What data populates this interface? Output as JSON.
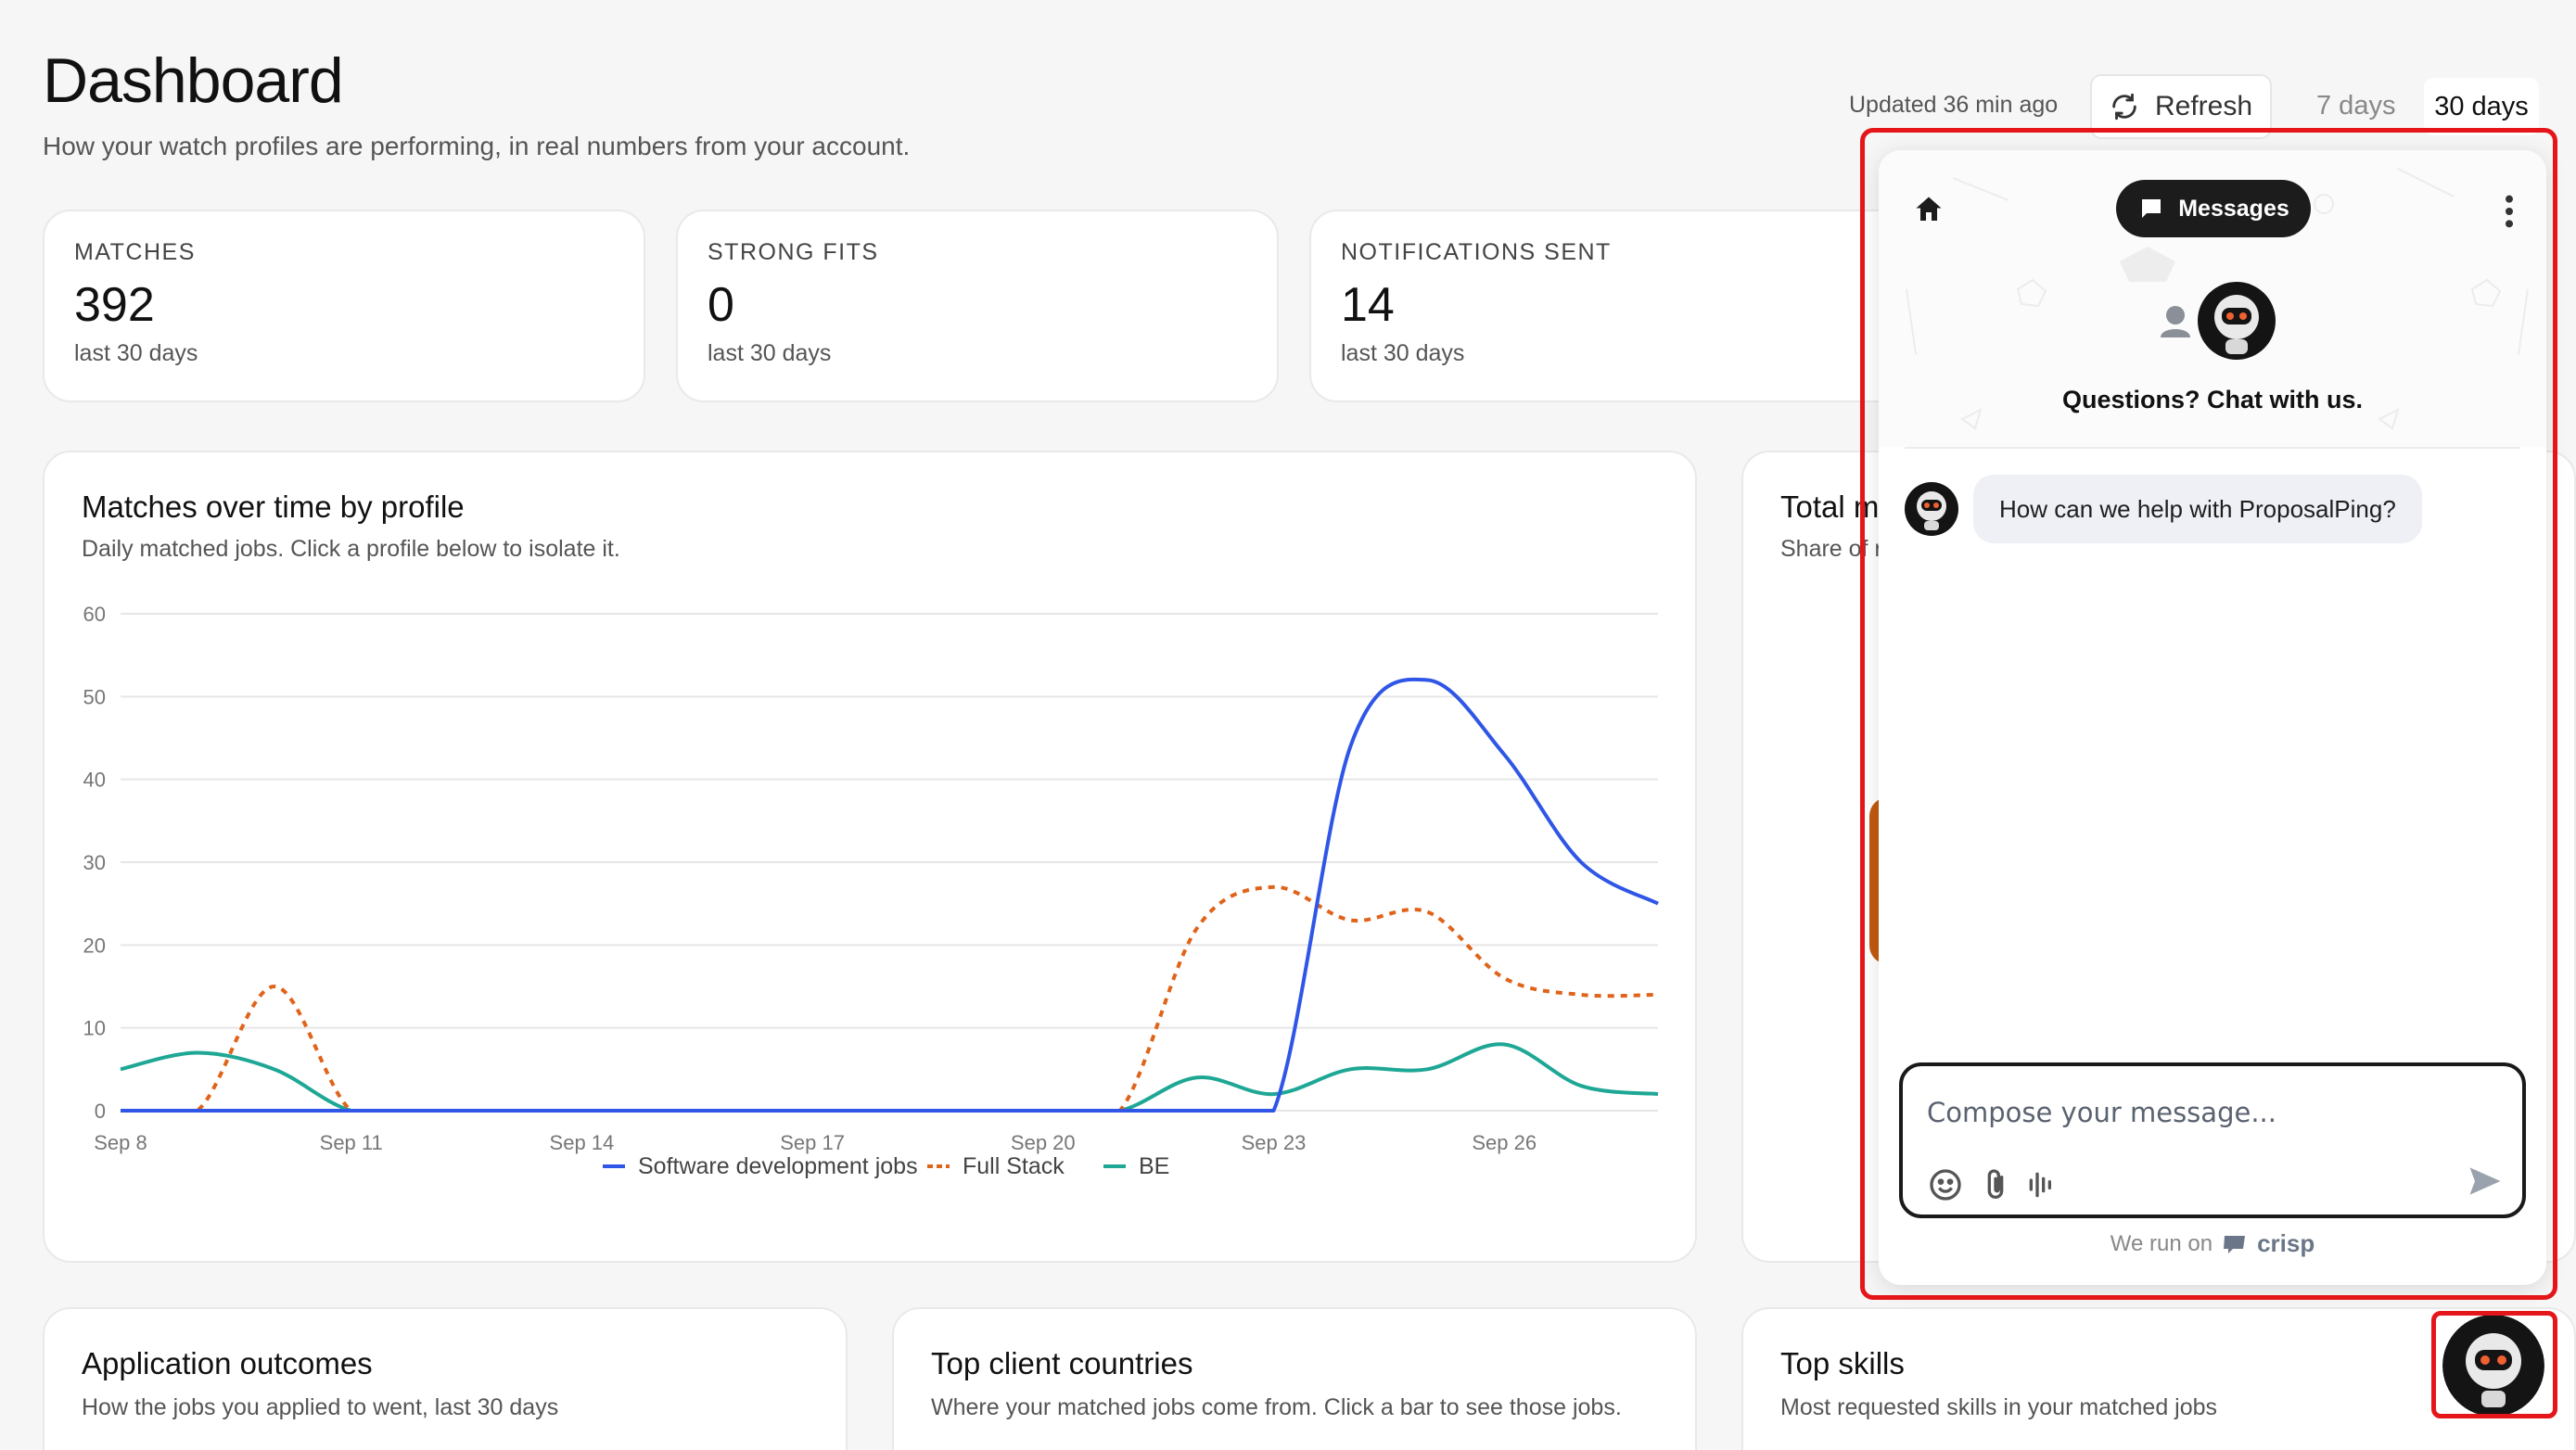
{
  "header": {
    "title": "Dashboard",
    "subtitle": "How your watch profiles are performing, in real numbers from your account.",
    "updated": "Updated 36 min ago",
    "refresh_label": "Refresh",
    "range_7": "7 days",
    "range_30": "30 days"
  },
  "kpis": [
    {
      "label": "MATCHES",
      "value": "392",
      "sub": "last 30 days"
    },
    {
      "label": "STRONG FITS",
      "value": "0",
      "sub": "last 30 days"
    },
    {
      "label": "NOTIFICATIONS SENT",
      "value": "14",
      "sub": "last 30 days"
    }
  ],
  "chart_card": {
    "title": "Matches over time by profile",
    "subtitle": "Daily matched jobs. Click a profile below to isolate it."
  },
  "right_card": {
    "title": "Total m",
    "subtitle": "Share of r"
  },
  "bottom_cards": [
    {
      "title": "Application outcomes",
      "subtitle": "How the jobs you applied to went, last 30 days"
    },
    {
      "title": "Top client countries",
      "subtitle": "Where your matched jobs come from. Click a bar to see those jobs."
    },
    {
      "title": "Top skills",
      "subtitle": "Most requested skills in your matched jobs"
    }
  ],
  "chat": {
    "tab_label": "Messages",
    "question": "Questions? Chat with us.",
    "bot_message": "How can we help with ProposalPing?",
    "composer_placeholder": "Compose your message...",
    "footer_text": "We run on",
    "footer_brand": "crisp"
  },
  "colors": {
    "software": "#2f56e6",
    "fullstack": "#e0631a",
    "be": "#1fa795",
    "highlight": "#e5161a"
  },
  "chart_data": {
    "type": "line",
    "title": "Matches over time by profile",
    "subtitle": "Daily matched jobs. Click a profile below to isolate it.",
    "ylim": [
      0,
      60
    ],
    "yticks": [
      0,
      10,
      20,
      30,
      40,
      50,
      60
    ],
    "xtick_labels": [
      "Sep 8",
      "Sep 11",
      "Sep 14",
      "Sep 17",
      "Sep 20",
      "Sep 23",
      "Sep 26"
    ],
    "x": [
      "Sep 8",
      "Sep 9",
      "Sep 10",
      "Sep 11",
      "Sep 12",
      "Sep 13",
      "Sep 14",
      "Sep 15",
      "Sep 16",
      "Sep 17",
      "Sep 18",
      "Sep 19",
      "Sep 20",
      "Sep 21",
      "Sep 22",
      "Sep 23",
      "Sep 24",
      "Sep 25",
      "Sep 26",
      "Sep 27",
      "Sep 28"
    ],
    "legend_position": "bottom",
    "grid": true,
    "series": [
      {
        "name": "Software development jobs",
        "color": "#2f56e6",
        "dash": false,
        "values": [
          0,
          0,
          0,
          0,
          0,
          0,
          0,
          0,
          0,
          0,
          0,
          0,
          0,
          0,
          0,
          0,
          44,
          52,
          43,
          30,
          25
        ]
      },
      {
        "name": "Full Stack",
        "color": "#e0631a",
        "dash": true,
        "values": [
          0,
          0,
          15,
          0,
          0,
          0,
          0,
          0,
          0,
          0,
          0,
          0,
          0,
          0,
          22,
          27,
          23,
          24,
          16,
          14,
          14
        ]
      },
      {
        "name": "BE",
        "color": "#1fa795",
        "dash": false,
        "values": [
          5,
          7,
          5,
          0,
          0,
          0,
          0,
          0,
          0,
          0,
          0,
          0,
          0,
          0,
          4,
          2,
          5,
          5,
          8,
          3,
          2
        ]
      }
    ]
  }
}
